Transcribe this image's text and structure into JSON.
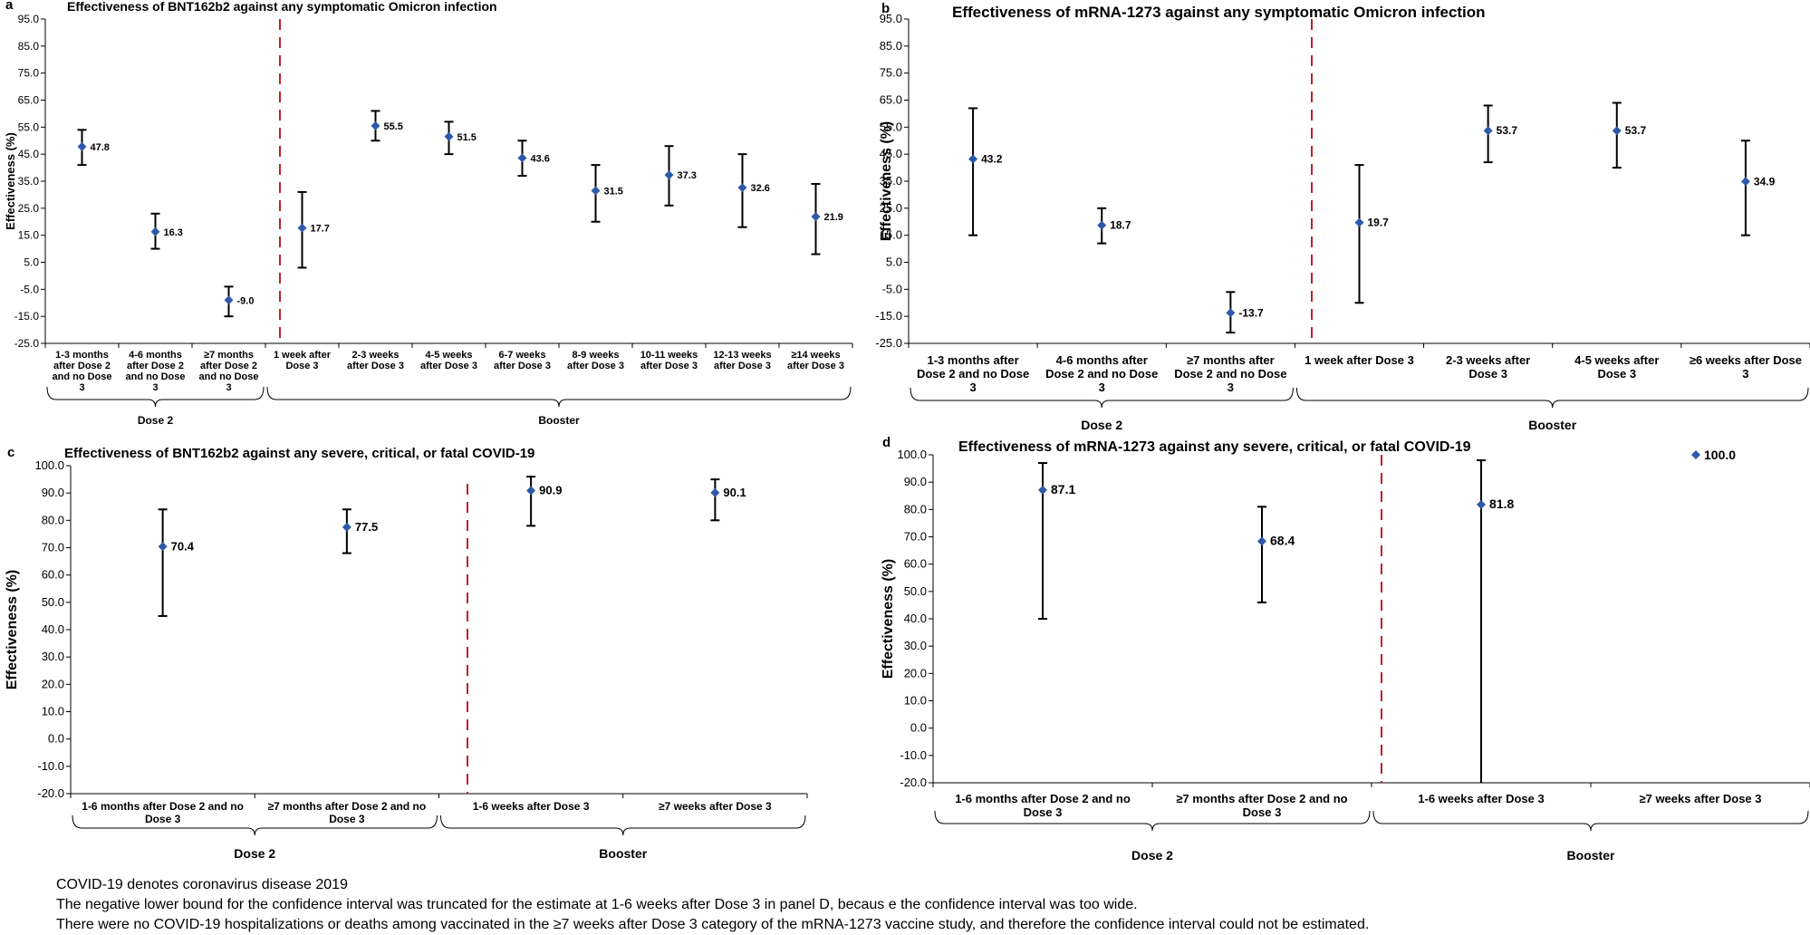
{
  "colors": {
    "marker": "#2e59a8",
    "errorbar": "#000000",
    "divider": "#c0202a",
    "axis": "#000000",
    "tick_text": "#000000"
  },
  "chart_data": [
    {
      "panel": "a",
      "type": "scatter",
      "title": "Effectiveness of BNT162b2 against any symptomatic Omicron infection",
      "ylabel": "Effectiveness (%)",
      "ylim": [
        -25,
        95
      ],
      "yticks": [
        "-25.0",
        "-15.0",
        "-5.0",
        "5.0",
        "15.0",
        "25.0",
        "35.0",
        "45.0",
        "55.0",
        "65.0",
        "75.0",
        "85.0",
        "95.0"
      ],
      "categories": [
        [
          "1-3 months",
          "after Dose 2",
          "and no Dose",
          "3"
        ],
        [
          "4-6 months",
          "after Dose 2",
          "and no Dose",
          "3"
        ],
        [
          "≥7 months",
          "after Dose 2",
          "and no Dose",
          "3"
        ],
        [
          "1 week after",
          "Dose 3"
        ],
        [
          "2-3 weeks",
          "after Dose 3"
        ],
        [
          "4-5 weeks",
          "after Dose 3"
        ],
        [
          "6-7 weeks",
          "after Dose 3"
        ],
        [
          "8-9 weeks",
          "after Dose 3"
        ],
        [
          "10-11 weeks",
          "after Dose 3"
        ],
        [
          "12-13 weeks",
          "after Dose 3"
        ],
        [
          "≥14 weeks",
          "after Dose 3"
        ]
      ],
      "values": [
        47.8,
        16.3,
        -9.0,
        17.7,
        55.5,
        51.5,
        43.6,
        31.5,
        37.3,
        32.6,
        21.9
      ],
      "labels": [
        "47.8",
        "16.3",
        "-9.0",
        "17.7",
        "55.5",
        "51.5",
        "43.6",
        "31.5",
        "37.3",
        "32.6",
        "21.9"
      ],
      "ci_low": [
        41,
        10,
        -15,
        3,
        50,
        45,
        37,
        20,
        26,
        18,
        8
      ],
      "ci_high": [
        54,
        23,
        -4,
        31,
        61,
        57,
        50,
        41,
        48,
        45,
        34
      ],
      "groups": [
        {
          "name": "Dose 2",
          "from": 0,
          "to": 2
        },
        {
          "name": "Booster",
          "from": 3,
          "to": 10
        }
      ]
    },
    {
      "panel": "b",
      "type": "scatter",
      "title": "Effectiveness of mRNA-1273 against any symptomatic Omicron infection",
      "ylabel": "Effectiveness (%)",
      "ylim": [
        -25,
        95
      ],
      "yticks": [
        "-25.0",
        "-15.0",
        "-5.0",
        "5.0",
        "15.0",
        "25.0",
        "35.0",
        "45.0",
        "55.0",
        "65.0",
        "75.0",
        "85.0",
        "95.0"
      ],
      "categories": [
        [
          "1-3 months after",
          "Dose 2 and no Dose",
          "3"
        ],
        [
          "4-6 months after",
          "Dose 2 and no Dose",
          "3"
        ],
        [
          "≥7 months after",
          "Dose 2 and no Dose",
          "3"
        ],
        [
          "1 week after Dose 3"
        ],
        [
          "2-3 weeks after",
          "Dose 3"
        ],
        [
          "4-5 weeks after",
          "Dose 3"
        ],
        [
          "≥6 weeks after Dose",
          "3"
        ]
      ],
      "values": [
        43.2,
        18.7,
        -13.7,
        19.7,
        53.7,
        53.7,
        34.9
      ],
      "labels": [
        "43.2",
        "18.7",
        "-13.7",
        "19.7",
        "53.7",
        "53.7",
        "34.9"
      ],
      "ci_low": [
        15,
        12,
        -21,
        -10,
        42,
        40,
        15
      ],
      "ci_high": [
        62,
        25,
        -6,
        41,
        63,
        64,
        50
      ],
      "groups": [
        {
          "name": "Dose 2",
          "from": 0,
          "to": 2
        },
        {
          "name": "Booster",
          "from": 3,
          "to": 6
        }
      ]
    },
    {
      "panel": "c",
      "type": "scatter",
      "title": "Effectiveness of BNT162b2 against any severe, critical, or fatal COVID-19",
      "ylabel": "Effectiveness (%)",
      "ylim": [
        -20,
        100
      ],
      "yticks": [
        "-20.0",
        "-10.0",
        "0.0",
        "10.0",
        "20.0",
        "30.0",
        "40.0",
        "50.0",
        "60.0",
        "70.0",
        "80.0",
        "90.0",
        "100.0"
      ],
      "categories": [
        [
          "1-6 months after Dose 2 and no",
          "Dose 3"
        ],
        [
          "≥7 months after Dose 2 and no",
          "Dose 3"
        ],
        [
          "1-6 weeks after Dose 3"
        ],
        [
          "≥7 weeks after Dose 3"
        ]
      ],
      "values": [
        70.4,
        77.5,
        90.9,
        90.1
      ],
      "labels": [
        "70.4",
        "77.5",
        "90.9",
        "90.1"
      ],
      "ci_low": [
        45,
        68,
        78,
        80
      ],
      "ci_high": [
        84,
        84,
        96,
        95
      ],
      "groups": [
        {
          "name": "Dose 2",
          "from": 0,
          "to": 1
        },
        {
          "name": "Booster",
          "from": 2,
          "to": 3
        }
      ]
    },
    {
      "panel": "d",
      "type": "scatter",
      "title": "Effectiveness of mRNA-1273 against any severe, critical, or fatal COVID-19",
      "ylabel": "Effectiveness (%)",
      "ylim": [
        -20,
        100
      ],
      "yticks": [
        "-20.0",
        "-10.0",
        "0.0",
        "10.0",
        "20.0",
        "30.0",
        "40.0",
        "50.0",
        "60.0",
        "70.0",
        "80.0",
        "90.0",
        "100.0"
      ],
      "categories": [
        [
          "1-6 months after Dose 2 and no",
          "Dose 3"
        ],
        [
          "≥7 months after Dose 2 and no",
          "Dose 3"
        ],
        [
          "1-6 weeks after Dose 3"
        ],
        [
          "≥7 weeks after Dose 3"
        ]
      ],
      "values": [
        87.1,
        68.4,
        81.8,
        100.0
      ],
      "labels": [
        "87.1",
        "68.4",
        "81.8",
        "100.0"
      ],
      "ci_low": [
        40,
        46,
        -20,
        null
      ],
      "ci_high": [
        97,
        81,
        98,
        null
      ],
      "groups": [
        {
          "name": "Dose 2",
          "from": 0,
          "to": 1
        },
        {
          "name": "Booster",
          "from": 2,
          "to": 3
        }
      ]
    }
  ],
  "notes": [
    "COVID-19 denotes coronavirus disease 2019",
    "The negative lower bound for the confidence interval was truncated for the estimate at 1-6 weeks after Dose 3 in panel D, becaus e the confidence interval was too wide.",
    "There were no COVID-19 hospitalizations or deaths among vaccinated in the ≥7 weeks after Dose 3 category of the mRNA-1273 vaccine study, and therefore the confidence interval could not be estimated."
  ]
}
